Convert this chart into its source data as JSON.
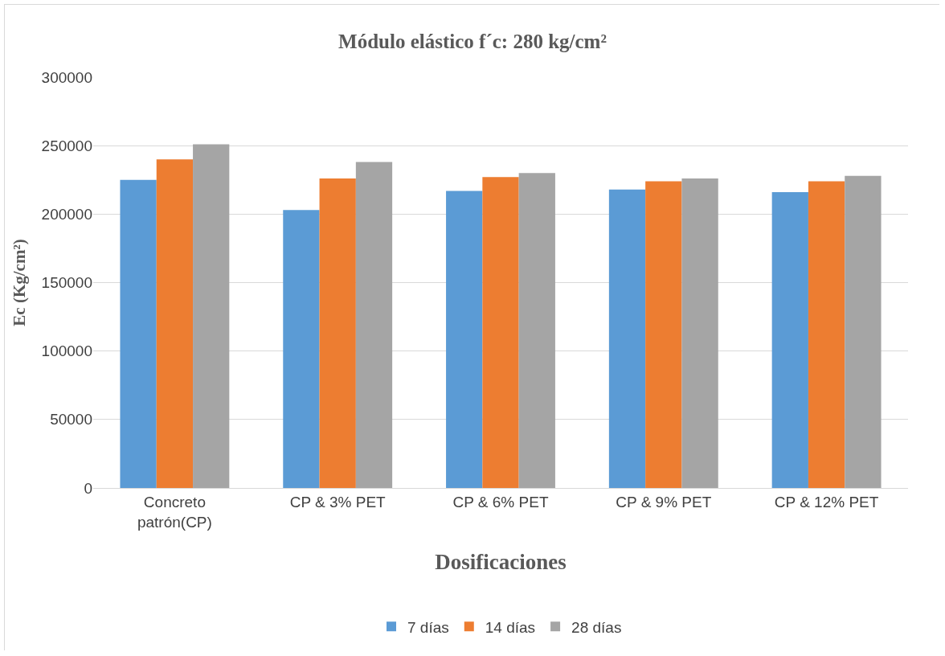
{
  "chart_data": {
    "type": "bar",
    "title": "Módulo elástico f´c: 280 kg/cm²",
    "xlabel": "Dosificaciones",
    "ylabel": "Ec (Kg/cm²)",
    "categories": [
      "Concreto patrón(CP)",
      "CP & 3% PET",
      "CP & 6% PET",
      "CP & 9% PET",
      "CP & 12% PET"
    ],
    "series": [
      {
        "name": "7 días",
        "color": "#5b9bd5",
        "values": [
          225000,
          203000,
          217000,
          218000,
          216000
        ]
      },
      {
        "name": "14 días",
        "color": "#ed7d31",
        "values": [
          240000,
          226000,
          227000,
          224000,
          224000
        ]
      },
      {
        "name": "28 días",
        "color": "#a5a5a5",
        "values": [
          251000,
          238000,
          230000,
          226000,
          228000
        ]
      }
    ],
    "ylim": [
      0,
      300000
    ],
    "yticks": [
      0,
      50000,
      100000,
      150000,
      200000,
      250000,
      300000
    ],
    "grid": "y",
    "legend": "bottom"
  }
}
